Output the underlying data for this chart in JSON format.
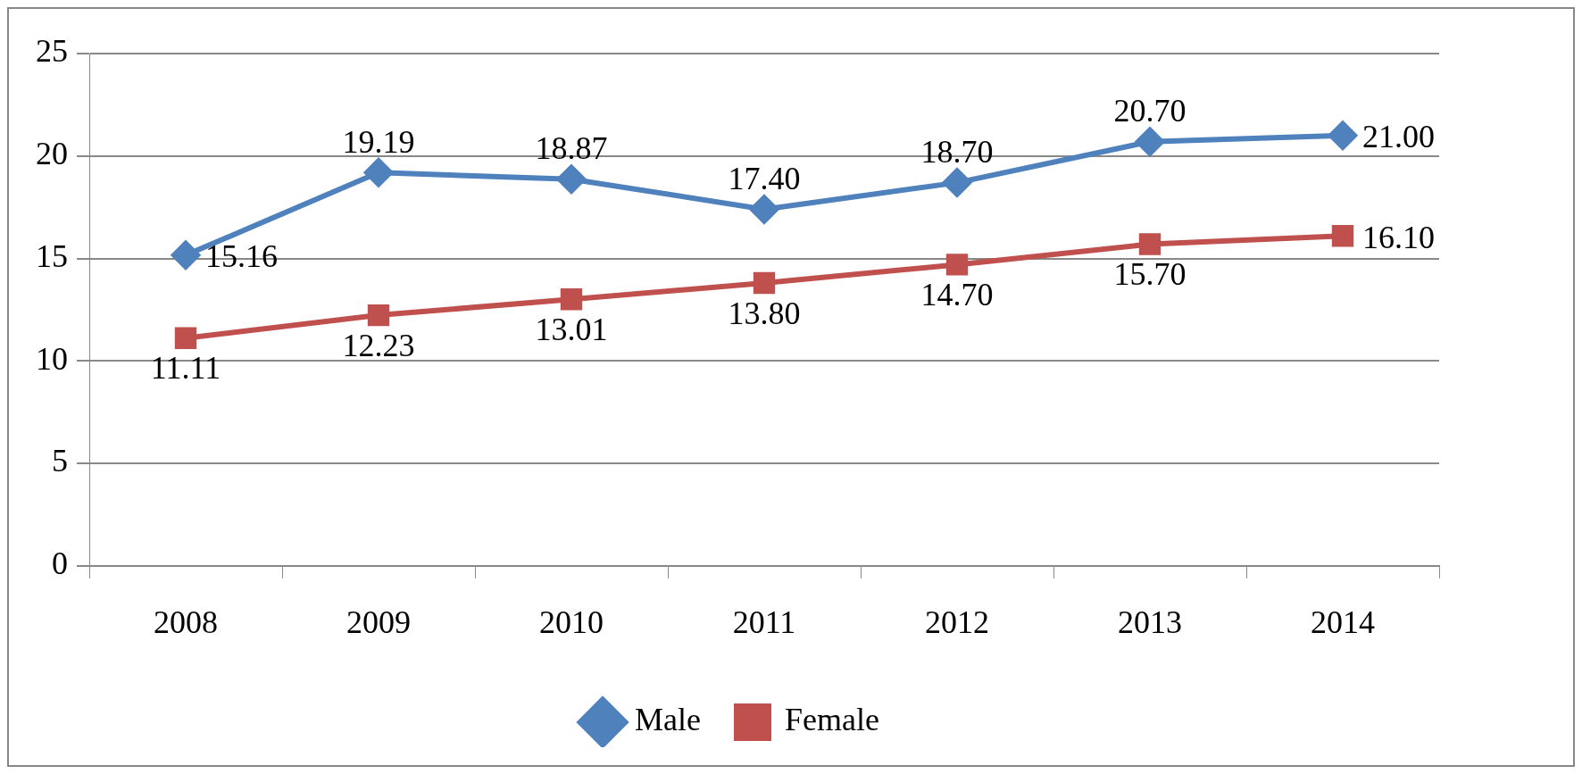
{
  "chart_data": {
    "type": "line",
    "categories": [
      "2008",
      "2009",
      "2010",
      "2011",
      "2012",
      "2013",
      "2014"
    ],
    "series": [
      {
        "name": "Male",
        "color": "#4f81bd",
        "marker": "diamond",
        "values": [
          15.16,
          19.19,
          18.87,
          17.4,
          18.7,
          20.7,
          21.0
        ],
        "value_labels": [
          "15.16",
          "19.19",
          "18.87",
          "17.40",
          "18.70",
          "20.70",
          "21.00"
        ]
      },
      {
        "name": "Female",
        "color": "#c0504d",
        "marker": "square",
        "values": [
          11.11,
          12.23,
          13.01,
          13.8,
          14.7,
          15.7,
          16.1
        ],
        "value_labels": [
          "11.11",
          "12.23",
          "13.01",
          "13.80",
          "14.70",
          "15.70",
          "16.10"
        ]
      }
    ],
    "ylim": [
      0,
      25
    ],
    "yticks": [
      0,
      5,
      10,
      15,
      20,
      25
    ],
    "grid": "y",
    "legend": "bottom"
  }
}
